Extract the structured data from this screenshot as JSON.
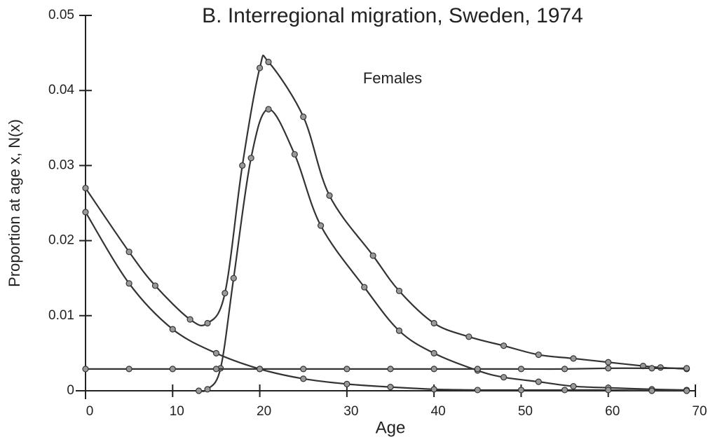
{
  "chart_data": {
    "type": "line",
    "title": "B. Interregional migration, Sweden, 1974",
    "annotation": "Females",
    "xlabel": "Age",
    "ylabel": "Proportion at age x, N(x)",
    "xlim": [
      0,
      70
    ],
    "ylim": [
      0,
      0.05
    ],
    "xticks": [
      0,
      10,
      20,
      30,
      40,
      50,
      60,
      70
    ],
    "yticks": [
      0,
      0.01,
      0.02,
      0.03,
      0.04,
      0.05
    ],
    "grid": false,
    "series": [
      {
        "color": "#333333",
        "x": [
          0,
          5,
          8,
          12,
          14,
          16,
          18,
          20,
          21,
          25,
          28,
          33,
          36,
          40,
          44,
          48,
          52,
          56,
          60,
          64,
          66,
          69
        ],
        "values": [
          0.027,
          0.0185,
          0.014,
          0.0095,
          0.009,
          0.013,
          0.03,
          0.043,
          0.0438,
          0.0365,
          0.026,
          0.018,
          0.0133,
          0.009,
          0.0072,
          0.006,
          0.0048,
          0.0043,
          0.0038,
          0.0033,
          0.0031,
          0.0029
        ]
      },
      {
        "color": "#333333",
        "x": [
          13,
          14,
          15.5,
          17,
          19,
          21,
          24,
          27,
          32,
          36,
          40,
          45,
          48,
          52,
          56,
          60,
          65,
          69
        ],
        "values": [
          0,
          0.0002,
          0.003,
          0.015,
          0.031,
          0.0375,
          0.0315,
          0.022,
          0.0138,
          0.008,
          0.005,
          0.0027,
          0.0018,
          0.0012,
          0.0006,
          0.0004,
          0.0002,
          0.0001
        ]
      },
      {
        "color": "#333333",
        "x": [
          0,
          5,
          10,
          15,
          20,
          25,
          30,
          35,
          40,
          45,
          50,
          55,
          60,
          65,
          69
        ],
        "values": [
          0.0238,
          0.0143,
          0.0082,
          0.005,
          0.0029,
          0.0016,
          0.0009,
          0.0005,
          0.0002,
          0.0001,
          0.0001,
          0.0001,
          0.0001,
          0,
          0
        ]
      },
      {
        "color": "#333333",
        "x": [
          0,
          5,
          10,
          15,
          20,
          25,
          30,
          35,
          40,
          45,
          50,
          55,
          60,
          65,
          69
        ],
        "values": [
          0.0029,
          0.0029,
          0.0029,
          0.0029,
          0.0029,
          0.0029,
          0.0029,
          0.0029,
          0.0029,
          0.0029,
          0.0029,
          0.0029,
          0.003,
          0.003,
          0.003
        ]
      }
    ]
  }
}
